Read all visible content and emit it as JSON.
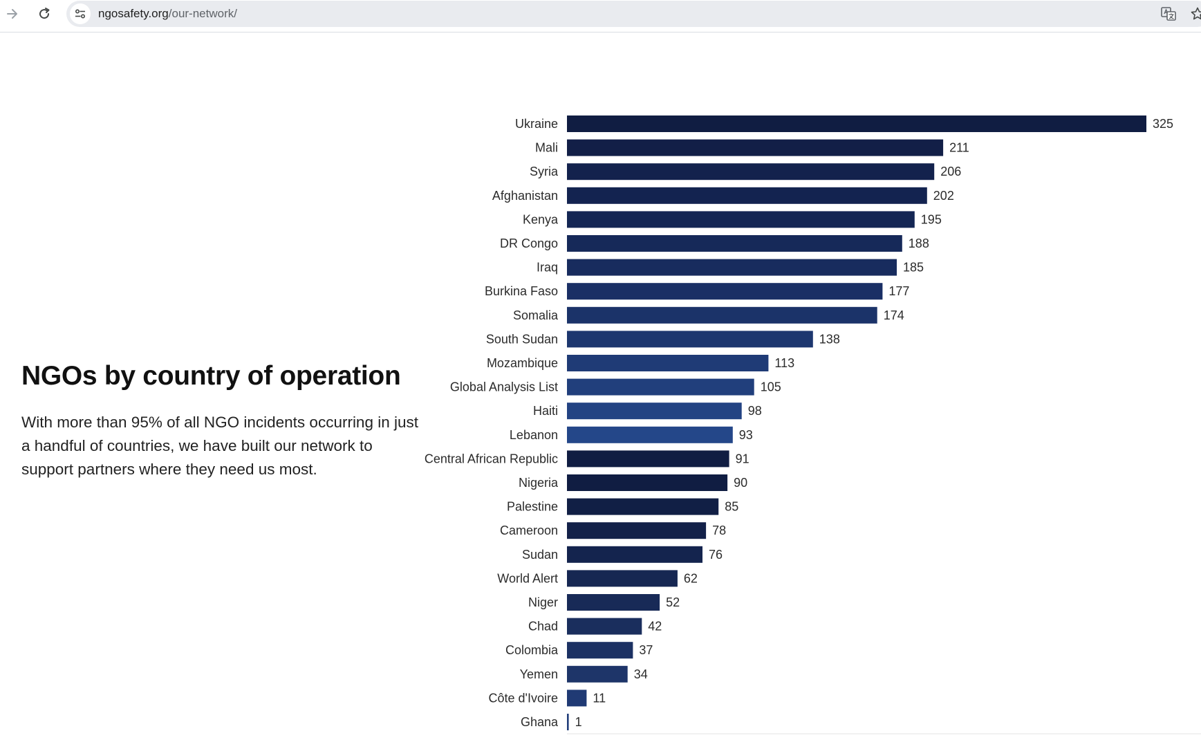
{
  "browser": {
    "url_host": "ngosafety.org",
    "url_path": "/our-network/"
  },
  "section": {
    "heading": "NGOs by country of operation",
    "intro": "With more than 95% of all NGO incidents occurring in just a handful of countries, we have built our network to support partners where they need us most."
  },
  "chart_data": {
    "type": "bar",
    "orientation": "horizontal",
    "title": "",
    "xlabel": "",
    "ylabel": "",
    "xlim": [
      0,
      325
    ],
    "grid": false,
    "categories": [
      "Ukraine",
      "Mali",
      "Syria",
      "Afghanistan",
      "Kenya",
      "DR Congo",
      "Iraq",
      "Burkina Faso",
      "Somalia",
      "South Sudan",
      "Mozambique",
      "Global Analysis List",
      "Haiti",
      "Lebanon",
      "Central African Republic",
      "Nigeria",
      "Palestine",
      "Cameroon",
      "Sudan",
      "World Alert",
      "Niger",
      "Chad",
      "Colombia",
      "Yemen",
      "Côte d'Ivoire",
      "Ghana"
    ],
    "values": [
      325,
      211,
      206,
      202,
      195,
      188,
      185,
      177,
      174,
      138,
      113,
      105,
      98,
      93,
      91,
      90,
      85,
      78,
      76,
      62,
      52,
      42,
      37,
      34,
      11,
      1
    ],
    "colors": [
      "#101d42",
      "#121f47",
      "#13224d",
      "#132350",
      "#142654",
      "#162959",
      "#182c5e",
      "#1a2f65",
      "#1b3369",
      "#1d376f",
      "#1f3b76",
      "#213f7c",
      "#234383",
      "#244789",
      "#101d42",
      "#101d42",
      "#111f45",
      "#132149",
      "#14244e",
      "#162752",
      "#182a57",
      "#1a2e5d",
      "#1c3163",
      "#1e3569",
      "#203a74",
      "#223e7a"
    ]
  }
}
